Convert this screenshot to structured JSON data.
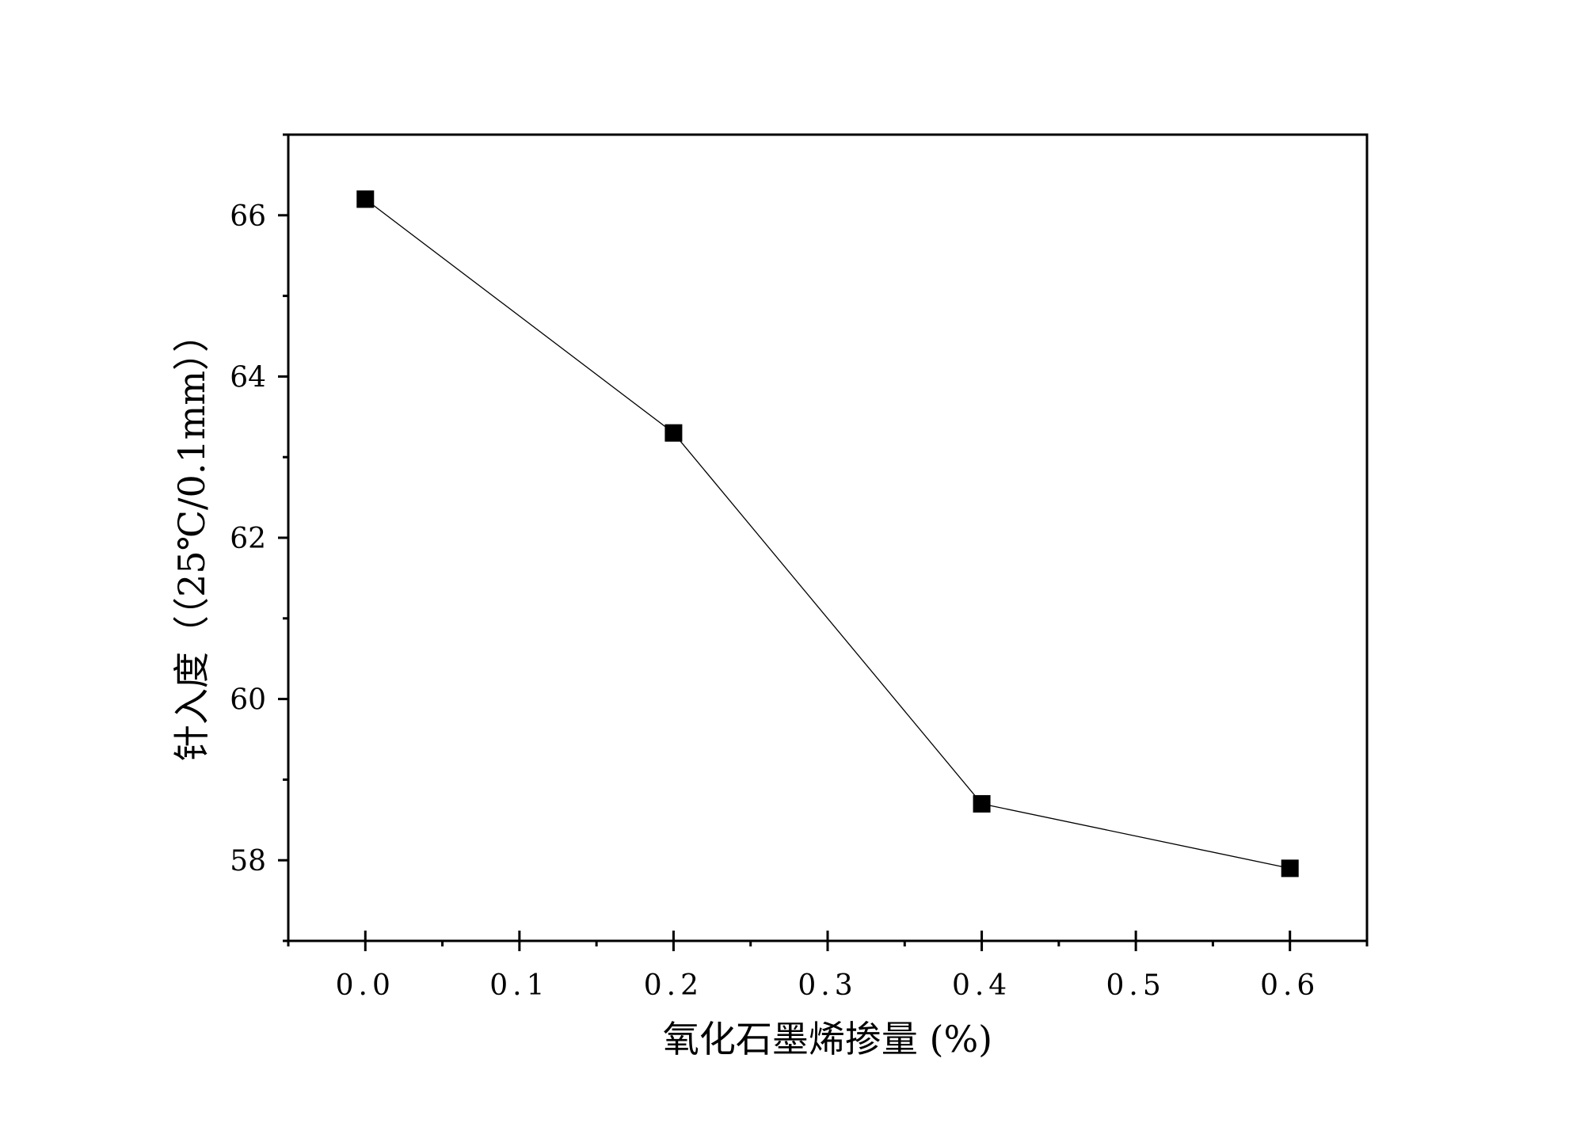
{
  "chart_data": {
    "type": "line",
    "title": "",
    "xlabel": "氧化石墨烯掺量 (%)",
    "ylabel": "针入度（（25℃/0.1mm））",
    "xlim": [
      -0.05,
      0.65
    ],
    "ylim": [
      57,
      67
    ],
    "x_ticks": [
      0.0,
      0.1,
      0.2,
      0.3,
      0.4,
      0.5,
      0.6
    ],
    "x_tick_labels": [
      "0.0",
      "0.1",
      "0.2",
      "0.3",
      "0.4",
      "0.5",
      "0.6"
    ],
    "x_minor_ticks": [
      -0.05,
      0.05,
      0.15,
      0.25,
      0.35,
      0.45,
      0.55,
      0.65
    ],
    "y_ticks": [
      58,
      60,
      62,
      64,
      66
    ],
    "y_tick_labels": [
      "58",
      "60",
      "62",
      "64",
      "66"
    ],
    "y_minor_ticks": [
      57,
      59,
      61,
      63,
      65,
      67
    ],
    "grid": false,
    "series": [
      {
        "x": [
          0.0,
          0.2,
          0.4,
          0.6
        ],
        "y": [
          66.2,
          63.3,
          58.7,
          57.9
        ],
        "marker": "square",
        "color": "#000000"
      }
    ]
  }
}
